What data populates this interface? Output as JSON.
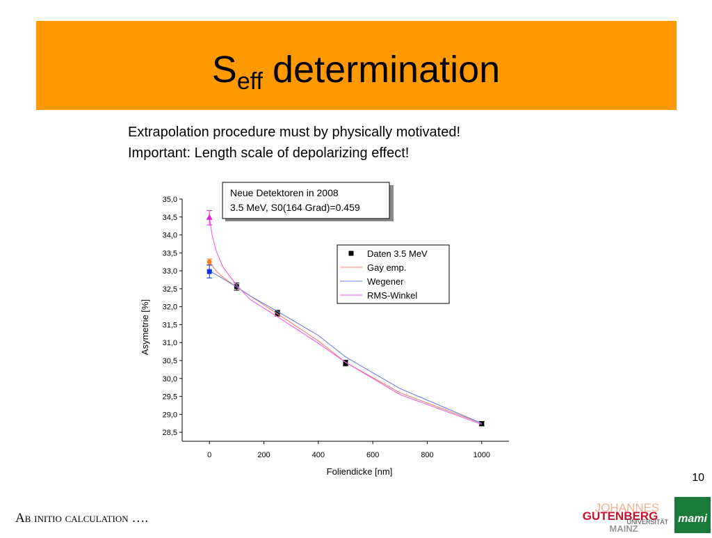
{
  "slide": {
    "title": {
      "main": "S",
      "sub": "eff",
      "rest": "determination"
    },
    "lines": [
      "Extrapolation procedure must by physically motivated!",
      "Important: Length scale of depolarizing  effect!"
    ],
    "page_number": "10",
    "footer": "Ab initio calculation ….",
    "logo": {
      "line1": "JOHANNES",
      "line2": "GUTENBERG",
      "line3": "UNIVERSITÄT",
      "line4": "MAINZ",
      "mami": "mami"
    }
  },
  "chart_data": {
    "type": "scatter",
    "x_label": "Foliendicke [nm]",
    "y_label": "Asymetrie [%]",
    "annotation": [
      "Neue Detektoren in 2008",
      "3.5 MeV, S0(164 Grad)=0.459"
    ],
    "legend": "upper right",
    "xlim": [
      -100,
      1100
    ],
    "xticks": [
      0,
      200,
      400,
      600,
      800,
      1000
    ],
    "ylim": [
      28.25,
      35.0
    ],
    "yticks": [
      {
        "value": 28.5,
        "label": "28,5"
      },
      {
        "value": 29.0,
        "label": "29,0"
      },
      {
        "value": 29.5,
        "label": "29,5"
      },
      {
        "value": 30.0,
        "label": "30,0"
      },
      {
        "value": 30.5,
        "label": "30,5"
      },
      {
        "value": 31.0,
        "label": "31,0"
      },
      {
        "value": 31.5,
        "label": "31,5"
      },
      {
        "value": 32.0,
        "label": "32,0"
      },
      {
        "value": 32.5,
        "label": "32,5"
      },
      {
        "value": 33.0,
        "label": "33,0"
      },
      {
        "value": 33.5,
        "label": "33,5"
      },
      {
        "value": 34.0,
        "label": "34,0"
      },
      {
        "value": 34.5,
        "label": "34,5"
      },
      {
        "value": 35.0,
        "label": "35,0"
      }
    ],
    "series": [
      {
        "name": "Daten 3.5 MeV",
        "color": "#000000",
        "x": [
          100,
          250,
          500,
          1000
        ],
        "values": [
          32.56,
          31.82,
          30.43,
          28.74
        ],
        "errors": [
          0.1,
          0.08,
          0.08,
          0.06
        ]
      },
      {
        "name": "Gay emp.",
        "color": "#f4826e",
        "x": [
          0,
          25,
          50,
          100,
          150,
          250,
          400,
          500,
          700,
          1000
        ],
        "values": [
          33.25,
          33.0,
          32.82,
          32.55,
          32.3,
          31.8,
          31.05,
          30.45,
          29.6,
          28.75
        ],
        "marker": {
          "x": 0,
          "value": 33.25,
          "error": 0.08,
          "color": "#f08020",
          "shape": "circle"
        }
      },
      {
        "name": "Wegener",
        "color": "#6f7fd8",
        "x": [
          0,
          50,
          100,
          150,
          250,
          400,
          500,
          700,
          1000
        ],
        "values": [
          33.0,
          32.78,
          32.55,
          32.3,
          31.87,
          31.2,
          30.6,
          29.72,
          28.75
        ],
        "marker": {
          "x": 0,
          "value": 32.98,
          "error": 0.18,
          "color": "#1030e0",
          "shape": "square"
        }
      },
      {
        "name": "RMS-Winkel",
        "color": "#f060e0",
        "x": [
          0,
          10,
          25,
          50,
          100,
          150,
          250,
          400,
          500,
          700,
          1000
        ],
        "values": [
          34.5,
          34.0,
          33.55,
          33.1,
          32.6,
          32.2,
          31.72,
          30.98,
          30.45,
          29.55,
          28.72
        ],
        "marker": {
          "x": 0,
          "value": 34.48,
          "error": 0.2,
          "color": "#e020e0",
          "shape": "triangle"
        }
      }
    ]
  }
}
